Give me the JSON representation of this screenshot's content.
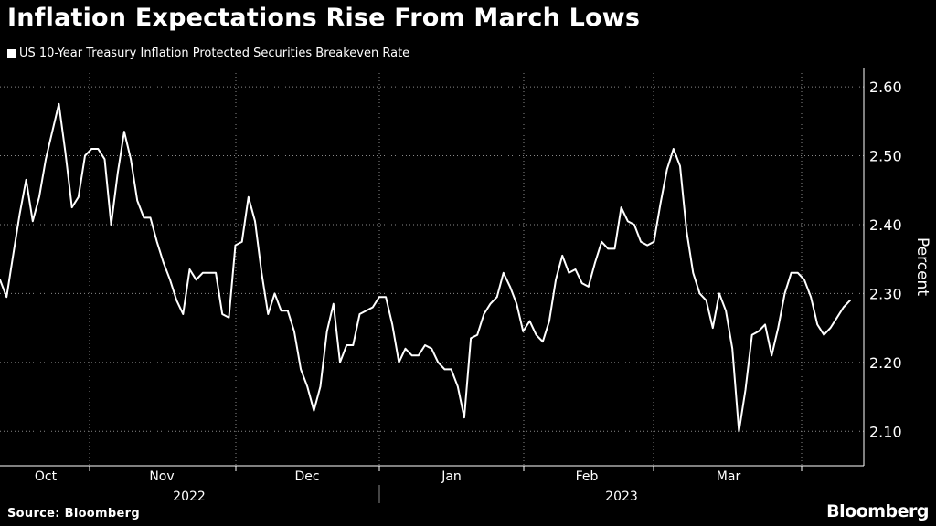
{
  "chart_data": {
    "type": "line",
    "title": "Inflation Expectations Rise From March Lows",
    "series": [
      {
        "name": "US 10-Year Treasury Inflation Protected Securities Breakeven Rate",
        "color": "#ffffff",
        "values": [
          2.32,
          2.295,
          2.355,
          2.415,
          2.465,
          2.405,
          2.44,
          2.495,
          2.535,
          2.575,
          2.505,
          2.425,
          2.44,
          2.5,
          2.51,
          2.51,
          2.495,
          2.4,
          2.475,
          2.535,
          2.495,
          2.435,
          2.41,
          2.41,
          2.375,
          2.345,
          2.32,
          2.29,
          2.27,
          2.335,
          2.32,
          2.33,
          2.33,
          2.33,
          2.27,
          2.265,
          2.37,
          2.375,
          2.44,
          2.405,
          2.33,
          2.27,
          2.3,
          2.275,
          2.275,
          2.245,
          2.19,
          2.165,
          2.13,
          2.165,
          2.245,
          2.285,
          2.2,
          2.225,
          2.225,
          2.27,
          2.275,
          2.28,
          2.295,
          2.295,
          2.255,
          2.2,
          2.22,
          2.21,
          2.21,
          2.225,
          2.22,
          2.2,
          2.19,
          2.19,
          2.165,
          2.12,
          2.235,
          2.24,
          2.27,
          2.285,
          2.295,
          2.33,
          2.31,
          2.285,
          2.245,
          2.26,
          2.24,
          2.23,
          2.26,
          2.32,
          2.355,
          2.33,
          2.335,
          2.315,
          2.31,
          2.345,
          2.375,
          2.365,
          2.365,
          2.425,
          2.405,
          2.4,
          2.375,
          2.37,
          2.375,
          2.43,
          2.48,
          2.51,
          2.485,
          2.39,
          2.33,
          2.3,
          2.29,
          2.25,
          2.3,
          2.275,
          2.22,
          2.1,
          2.16,
          2.24,
          2.245,
          2.255,
          2.21,
          2.25,
          2.3,
          2.33,
          2.33,
          2.32,
          2.295,
          2.255,
          2.24,
          2.25,
          2.265,
          2.28,
          2.29
        ]
      }
    ],
    "ylabel": "Percent",
    "ylim": [
      2.05,
      2.62
    ],
    "yticks": [
      2.1,
      2.2,
      2.3,
      2.4,
      2.5,
      2.6
    ],
    "ytick_labels": [
      "2.10",
      "2.20",
      "2.30",
      "2.40",
      "2.50",
      "2.60"
    ],
    "month_labels": [
      "Oct",
      "Nov",
      "Dec",
      "Jan",
      "Feb",
      "Mar"
    ],
    "year_labels": [
      "2022",
      "2023"
    ],
    "grid": true,
    "grid_style": "dotted",
    "legend_position": "top-left"
  },
  "footer": {
    "source": "Source: Bloomberg",
    "brand": "Bloomberg"
  },
  "colors": {
    "background": "#000000",
    "foreground": "#ffffff",
    "grid": "#8a8a8a"
  }
}
